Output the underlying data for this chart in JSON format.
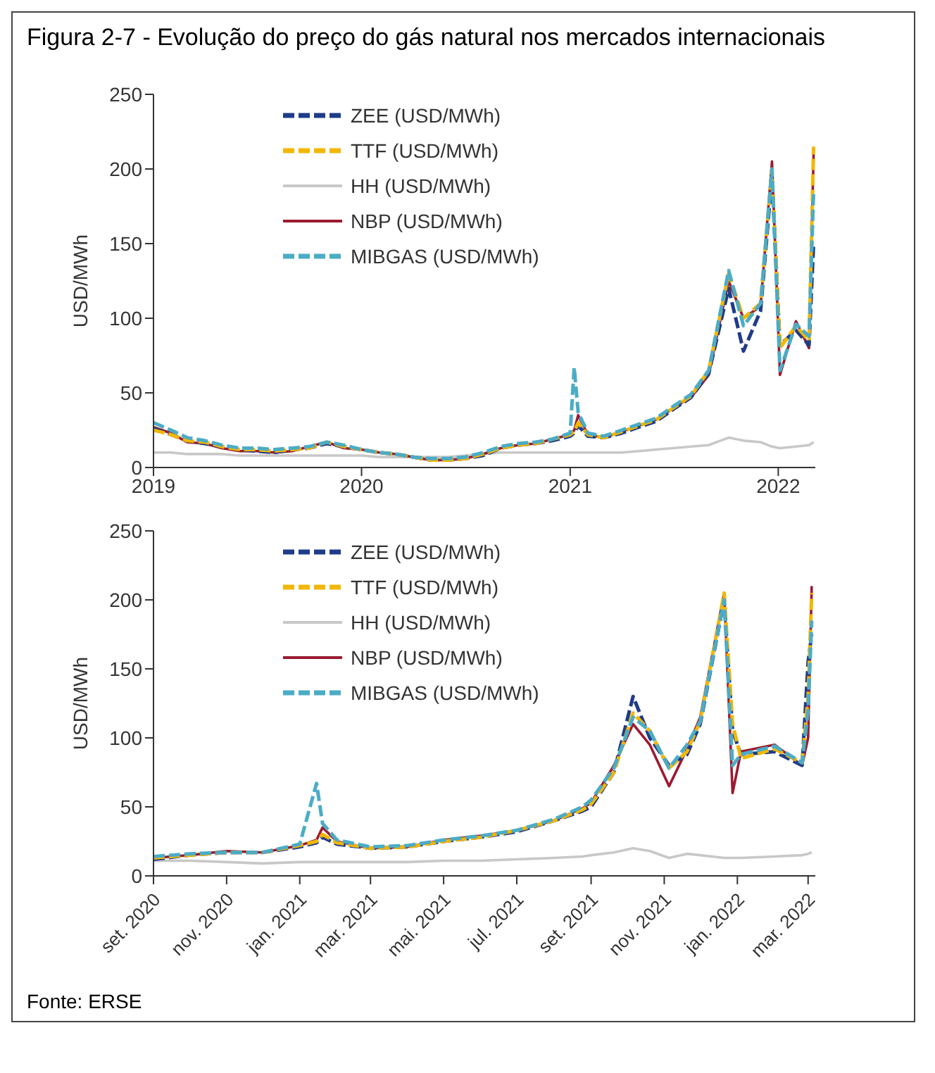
{
  "chart_data": [
    {
      "type": "line",
      "title": "Figura 2-7 - Evolução do preço do gás natural nos mercados internacionais",
      "ylabel": "USD/MWh",
      "x": [
        "2019-01-01",
        "2019-02-01",
        "2019-03-01",
        "2019-04-01",
        "2019-05-01",
        "2019-06-01",
        "2019-07-01",
        "2019-08-01",
        "2019-09-01",
        "2019-10-01",
        "2019-11-01",
        "2019-12-01",
        "2020-01-01",
        "2020-02-01",
        "2020-03-01",
        "2020-04-01",
        "2020-05-01",
        "2020-06-01",
        "2020-07-01",
        "2020-08-01",
        "2020-09-01",
        "2020-10-01",
        "2020-11-01",
        "2020-12-01",
        "2021-01-01",
        "2021-01-08",
        "2021-01-15",
        "2021-02-01",
        "2021-03-01",
        "2021-04-01",
        "2021-05-01",
        "2021-06-01",
        "2021-07-01",
        "2021-08-01",
        "2021-09-01",
        "2021-10-06",
        "2021-11-01",
        "2021-12-01",
        "2021-12-21",
        "2022-01-04",
        "2022-02-01",
        "2022-02-24",
        "2022-03-04"
      ],
      "series": [
        {
          "name": "ZEE (USD/MWh)",
          "color": "#1f3c88",
          "line_style": "dashed",
          "values": [
            26,
            22,
            18,
            16,
            14,
            12,
            11,
            10,
            12,
            13,
            16,
            14,
            12,
            10,
            9,
            7,
            5,
            5,
            6,
            8,
            13,
            15,
            16,
            18,
            21,
            23,
            28,
            21,
            20,
            23,
            27,
            31,
            39,
            47,
            63,
            120,
            78,
            105,
            195,
            82,
            92,
            82,
            150
          ]
        },
        {
          "name": "TTF (USD/MWh)",
          "color": "#f2b705",
          "line_style": "dashed",
          "values": [
            25,
            22,
            18,
            17,
            14,
            12,
            12,
            11,
            12,
            13,
            17,
            14,
            12,
            10,
            9,
            7,
            5,
            5,
            6,
            9,
            13,
            15,
            16,
            19,
            22,
            24,
            30,
            22,
            20,
            24,
            28,
            32,
            40,
            48,
            65,
            130,
            100,
            110,
            200,
            80,
            95,
            85,
            215
          ]
        },
        {
          "name": "HH (USD/MWh)",
          "color": "#c8c8c8",
          "line_style": "solid",
          "values": [
            10,
            10,
            9,
            9,
            9,
            8,
            8,
            8,
            8,
            8,
            8,
            8,
            8,
            7,
            7,
            7,
            7,
            7,
            8,
            9,
            10,
            10,
            10,
            10,
            10,
            10,
            10,
            10,
            10,
            10,
            11,
            12,
            13,
            14,
            15,
            20,
            18,
            17,
            14,
            13,
            14,
            15,
            17
          ]
        },
        {
          "name": "NBP (USD/MWh)",
          "color": "#9b1b30",
          "line_style": "solid",
          "values": [
            27,
            23,
            17,
            16,
            13,
            11,
            11,
            10,
            11,
            14,
            17,
            13,
            12,
            10,
            9,
            7,
            5,
            5,
            6,
            9,
            13,
            15,
            16,
            19,
            22,
            25,
            35,
            22,
            20,
            24,
            28,
            32,
            40,
            47,
            62,
            125,
            100,
            108,
            205,
            62,
            98,
            80,
            210
          ]
        },
        {
          "name": "MIBGAS (USD/MWh)",
          "color": "#4bacc6",
          "line_style": "dashed",
          "values": [
            30,
            25,
            20,
            18,
            15,
            13,
            13,
            12,
            13,
            14,
            17,
            15,
            12,
            10,
            9,
            7,
            6,
            6,
            7,
            10,
            14,
            16,
            17,
            19,
            23,
            67,
            37,
            23,
            21,
            25,
            29,
            33,
            41,
            49,
            65,
            132,
            95,
            110,
            200,
            65,
            96,
            88,
            185
          ]
        }
      ],
      "xlim": [
        "2019-01-01",
        "2022-03-07"
      ],
      "xticks": [
        {
          "value": "2019-01-01",
          "label": "2019"
        },
        {
          "value": "2020-01-01",
          "label": "2020"
        },
        {
          "value": "2021-01-01",
          "label": "2021"
        },
        {
          "value": "2022-01-01",
          "label": "2022"
        }
      ],
      "ylim": [
        0,
        250
      ],
      "yticks": [
        0,
        50,
        100,
        150,
        200,
        250
      ],
      "legend": "top left"
    },
    {
      "type": "line",
      "ylabel": "USD/MWh",
      "annotations": [
        "Fonte: ERSE"
      ],
      "x": [
        "2020-09-01",
        "2020-10-01",
        "2020-11-01",
        "2020-12-01",
        "2021-01-01",
        "2021-01-15",
        "2021-01-20",
        "2021-02-01",
        "2021-03-01",
        "2021-04-01",
        "2021-05-01",
        "2021-06-01",
        "2021-07-01",
        "2021-08-01",
        "2021-08-25",
        "2021-09-01",
        "2021-09-20",
        "2021-10-06",
        "2021-10-20",
        "2021-11-05",
        "2021-11-20",
        "2021-12-01",
        "2021-12-21",
        "2021-12-28",
        "2022-01-04",
        "2022-02-01",
        "2022-02-24",
        "2022-03-01",
        "2022-03-04"
      ],
      "series": [
        {
          "name": "ZEE (USD/MWh)",
          "color": "#1f3c88",
          "line_style": "dashed",
          "values": [
            12,
            15,
            17,
            17,
            21,
            24,
            28,
            23,
            20,
            21,
            25,
            28,
            32,
            40,
            47,
            50,
            75,
            130,
            100,
            80,
            88,
            110,
            200,
            105,
            88,
            90,
            80,
            155,
            175
          ]
        },
        {
          "name": "TTF (USD/MWh)",
          "color": "#f2b705",
          "line_style": "dashed",
          "values": [
            13,
            15,
            17,
            17,
            22,
            25,
            30,
            24,
            20,
            21,
            25,
            28,
            33,
            40,
            48,
            52,
            75,
            118,
            105,
            78,
            90,
            112,
            205,
            110,
            85,
            92,
            82,
            130,
            205
          ]
        },
        {
          "name": "HH (USD/MWh)",
          "color": "#c8c8c8",
          "line_style": "solid",
          "values": [
            11,
            11,
            10,
            9,
            10,
            10,
            10,
            10,
            10,
            10,
            11,
            11,
            12,
            13,
            14,
            15,
            17,
            20,
            18,
            13,
            16,
            15,
            13,
            13,
            13,
            14,
            15,
            16,
            17
          ]
        },
        {
          "name": "NBP (USD/MWh)",
          "color": "#9b1b30",
          "line_style": "solid",
          "values": [
            13,
            15,
            18,
            17,
            22,
            26,
            35,
            25,
            20,
            21,
            26,
            29,
            33,
            40,
            49,
            53,
            80,
            110,
            95,
            65,
            92,
            115,
            205,
            60,
            90,
            95,
            80,
            100,
            210
          ]
        },
        {
          "name": "MIBGAS (USD/MWh)",
          "color": "#4bacc6",
          "line_style": "dashed",
          "values": [
            14,
            16,
            17,
            17,
            23,
            67,
            38,
            26,
            21,
            22,
            26,
            29,
            33,
            41,
            50,
            55,
            78,
            115,
            105,
            78,
            95,
            112,
            200,
            80,
            88,
            94,
            82,
            120,
            185
          ]
        }
      ],
      "xlim": [
        "2020-09-01",
        "2022-03-07"
      ],
      "xticks": [
        {
          "value": "2020-09-01",
          "label": "set. 2020"
        },
        {
          "value": "2020-11-01",
          "label": "nov. 2020"
        },
        {
          "value": "2021-01-01",
          "label": "jan. 2021"
        },
        {
          "value": "2021-03-01",
          "label": "mar. 2021"
        },
        {
          "value": "2021-05-01",
          "label": "mai. 2021"
        },
        {
          "value": "2021-07-01",
          "label": "jul. 2021"
        },
        {
          "value": "2021-09-01",
          "label": "set. 2021"
        },
        {
          "value": "2021-11-01",
          "label": "nov. 2021"
        },
        {
          "value": "2022-01-01",
          "label": "jan. 2022"
        },
        {
          "value": "2022-03-01",
          "label": "mar. 2022"
        }
      ],
      "ylim": [
        0,
        250
      ],
      "yticks": [
        0,
        50,
        100,
        150,
        200,
        250
      ],
      "legend": "top left"
    }
  ]
}
